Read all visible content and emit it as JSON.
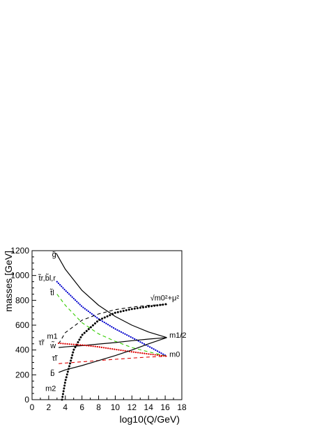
{
  "chart_data": {
    "type": "line",
    "title": "",
    "xlabel": "log10(Q/GeV)",
    "ylabel": "masses [GeV]",
    "xlim": [
      0,
      18
    ],
    "ylim": [
      0,
      1200
    ],
    "x_ticks": [
      "0",
      "2",
      "4",
      "6",
      "8",
      "10",
      "12",
      "14",
      "16",
      "18"
    ],
    "y_ticks": [
      "0",
      "200",
      "400",
      "600",
      "800",
      "1000",
      "1200"
    ],
    "grid": false,
    "legend": "none",
    "series": [
      {
        "name": "g̃",
        "color": "#000000",
        "style": "solid",
        "x": [
          2.9,
          4,
          6,
          8,
          10,
          12,
          14,
          16.2
        ],
        "y": [
          1180,
          1050,
          880,
          760,
          670,
          600,
          545,
          500
        ]
      },
      {
        "name": "t̃r,b̃l,r",
        "color": "#0000cc",
        "style": "dotted",
        "x": [
          3,
          4,
          6,
          8,
          10,
          12,
          14,
          16.2
        ],
        "y": [
          950,
          880,
          750,
          650,
          570,
          500,
          430,
          350
        ]
      },
      {
        "name": "t̃l",
        "color": "#33cc00",
        "style": "dashed",
        "x": [
          3,
          4,
          6,
          8,
          10,
          12,
          14,
          16.2
        ],
        "y": [
          850,
          760,
          620,
          530,
          470,
          420,
          385,
          350
        ]
      },
      {
        "name": "m1",
        "color": "#000000",
        "style": "dashed",
        "x": [
          3.2,
          4,
          6,
          8,
          10,
          12,
          14,
          16.2
        ],
        "y": [
          450,
          540,
          640,
          690,
          725,
          745,
          760,
          765
        ]
      },
      {
        "name": "√m0²+μ²",
        "color": "#000000",
        "style": "dotted-thick",
        "x": [
          3.6,
          4,
          5,
          6,
          8,
          10,
          12,
          14,
          16.2
        ],
        "y": [
          0,
          150,
          400,
          520,
          640,
          700,
          730,
          750,
          770
        ]
      },
      {
        "name": "w̃",
        "color": "#000000",
        "style": "solid",
        "x": [
          3.2,
          4,
          6,
          8,
          10,
          12,
          14,
          16.2
        ],
        "y": [
          420,
          425,
          435,
          448,
          460,
          475,
          488,
          500
        ]
      },
      {
        "name": "τ̃r",
        "color": "#dd0000",
        "style": "dotted",
        "x": [
          3.2,
          4,
          6,
          8,
          10,
          12,
          14,
          16.2
        ],
        "y": [
          455,
          450,
          440,
          425,
          405,
          385,
          368,
          350
        ]
      },
      {
        "name": "τ̃l",
        "color": "#dd0000",
        "style": "dashed",
        "x": [
          3.2,
          4,
          6,
          8,
          10,
          12,
          14,
          16.2
        ],
        "y": [
          290,
          295,
          305,
          315,
          325,
          335,
          343,
          350
        ]
      },
      {
        "name": "b̃",
        "color": "#000000",
        "style": "solid",
        "x": [
          3.2,
          4,
          6,
          8,
          10,
          12,
          14,
          16.2
        ],
        "y": [
          220,
          240,
          275,
          315,
          355,
          400,
          450,
          500
        ]
      }
    ],
    "annotations": [
      {
        "text": "g̃",
        "x": 2.4,
        "y": 1150
      },
      {
        "text": "t̃r,b̃l,r",
        "x": 0.8,
        "y": 960
      },
      {
        "text": "t̃l",
        "x": 2.2,
        "y": 840
      },
      {
        "text": "√m0²+μ²",
        "x": 14.2,
        "y": 800
      },
      {
        "text": "m1",
        "x": 1.8,
        "y": 490
      },
      {
        "text": "τ̃r",
        "x": 0.8,
        "y": 440
      },
      {
        "text": "w̃",
        "x": 2.2,
        "y": 415
      },
      {
        "text": "m1/2",
        "x": 16.5,
        "y": 500
      },
      {
        "text": "τ̃l",
        "x": 2.4,
        "y": 315
      },
      {
        "text": "m0",
        "x": 16.5,
        "y": 345
      },
      {
        "text": "b̃",
        "x": 2.2,
        "y": 190
      },
      {
        "text": "m2",
        "x": 1.6,
        "y": 70
      }
    ]
  }
}
